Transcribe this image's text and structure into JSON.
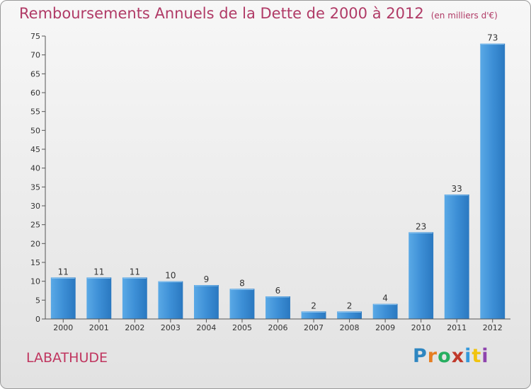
{
  "chart_data": {
    "type": "bar",
    "title": "Remboursements Annuels de la Dette de 2000 à 2012",
    "subtitle": "(en milliers d'€)",
    "categories": [
      "2000",
      "2001",
      "2002",
      "2003",
      "2004",
      "2005",
      "2006",
      "2007",
      "2008",
      "2009",
      "2010",
      "2011",
      "2012"
    ],
    "values": [
      11,
      11,
      11,
      10,
      9,
      8,
      6,
      2,
      2,
      4,
      23,
      33,
      73
    ],
    "xlabel": "",
    "ylabel": "",
    "ylim": [
      0,
      75
    ],
    "yticks": [
      0,
      5,
      10,
      15,
      20,
      25,
      30,
      35,
      40,
      45,
      50,
      55,
      60,
      65,
      70,
      75
    ],
    "grid": false,
    "data_labels": true,
    "bar_color": "#3d8fd6"
  },
  "footer": {
    "commune": "LABATHUDE",
    "logo": "Proxiti"
  },
  "colors": {
    "title": "#b03a66",
    "commune": "#c0355f",
    "logo_letters": [
      "#2e86c1",
      "#e67e22",
      "#27ae60",
      "#c0392b",
      "#3498db",
      "#f1c40f",
      "#8e44ad"
    ]
  }
}
